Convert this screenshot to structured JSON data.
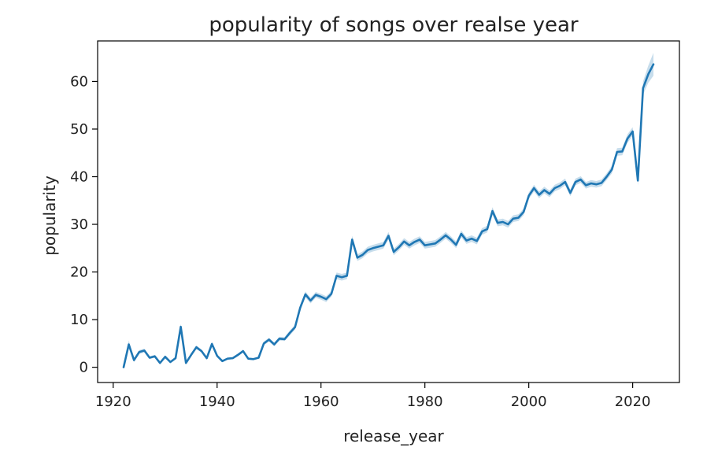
{
  "chart_data": {
    "type": "line",
    "title": "popularity of songs over realse year",
    "xlabel": "release_year",
    "ylabel": "popularity",
    "xlim": [
      1917,
      2029
    ],
    "ylim": [
      -3.2,
      68.5
    ],
    "xticks": [
      1920,
      1940,
      1960,
      1980,
      2000,
      2020
    ],
    "yticks": [
      0,
      10,
      20,
      30,
      40,
      50,
      60
    ],
    "grid": false,
    "legend": "none",
    "color": "#1f77b4",
    "series": [
      {
        "x": [
          1922,
          1923,
          1924,
          1925,
          1926,
          1927,
          1928,
          1929,
          1930,
          1931,
          1932,
          1933,
          1934,
          1935,
          1936,
          1937,
          1938,
          1939,
          1940,
          1941,
          1942,
          1943,
          1944,
          1945,
          1946,
          1947,
          1948,
          1949,
          1950,
          1951,
          1952,
          1953,
          1954,
          1955,
          1956,
          1957,
          1958,
          1959,
          1960,
          1961,
          1962,
          1963,
          1964,
          1965,
          1966,
          1967,
          1968,
          1969,
          1970,
          1971,
          1972,
          1973,
          1974,
          1975,
          1976,
          1977,
          1978,
          1979,
          1980,
          1981,
          1982,
          1983,
          1984,
          1985,
          1986,
          1987,
          1988,
          1989,
          1990,
          1991,
          1992,
          1993,
          1994,
          1995,
          1996,
          1997,
          1998,
          1999,
          2000,
          2001,
          2002,
          2003,
          2004,
          2005,
          2006,
          2007,
          2008,
          2009,
          2010,
          2011,
          2012,
          2013,
          2014,
          2015,
          2016,
          2017,
          2018,
          2019,
          2020,
          2021,
          2022,
          2023,
          2024
        ],
        "y": [
          0,
          4.8,
          1.5,
          3.2,
          3.5,
          2.0,
          2.3,
          0.9,
          2.2,
          1.1,
          1.9,
          8.5,
          0.9,
          2.6,
          4.2,
          3.4,
          1.9,
          4.9,
          2.4,
          1.3,
          1.8,
          1.9,
          2.6,
          3.4,
          1.8,
          1.7,
          2.0,
          5.0,
          5.8,
          4.8,
          6.0,
          5.9,
          7.2,
          8.4,
          12.5,
          15.3,
          14.0,
          15.2,
          14.8,
          14.3,
          15.4,
          19.2,
          18.9,
          19.2,
          26.8,
          23.0,
          23.6,
          24.6,
          25.0,
          25.3,
          25.6,
          27.6,
          24.2,
          25.2,
          26.4,
          25.6,
          26.3,
          26.8,
          25.6,
          25.8,
          26.0,
          26.8,
          27.7,
          26.8,
          25.7,
          28.0,
          26.6,
          27.0,
          26.5,
          28.5,
          29.0,
          32.8,
          30.3,
          30.5,
          30.0,
          31.2,
          31.4,
          32.6,
          36.0,
          37.6,
          36.2,
          37.2,
          36.4,
          37.6,
          38.1,
          38.9,
          36.6,
          38.9,
          39.4,
          38.2,
          38.6,
          38.4,
          38.7,
          40.0,
          41.5,
          45.2,
          45.3,
          48.0,
          49.5,
          39.2,
          58.6,
          61.5,
          63.6
        ],
        "band_width": [
          0.3,
          0.8,
          0.4,
          0.4,
          0.4,
          0.3,
          0.3,
          0.2,
          0.3,
          0.2,
          0.3,
          0.6,
          0.2,
          0.3,
          0.4,
          0.3,
          0.3,
          0.4,
          0.3,
          0.2,
          0.2,
          0.2,
          0.3,
          0.3,
          0.2,
          0.2,
          0.2,
          0.4,
          0.4,
          0.4,
          0.4,
          0.4,
          0.5,
          0.5,
          0.6,
          0.6,
          0.6,
          0.6,
          0.6,
          0.6,
          0.6,
          0.7,
          0.7,
          0.7,
          0.8,
          0.7,
          0.7,
          0.7,
          0.7,
          0.7,
          0.7,
          0.8,
          0.7,
          0.7,
          0.7,
          0.7,
          0.7,
          0.7,
          0.7,
          0.7,
          0.7,
          0.7,
          0.7,
          0.7,
          0.7,
          0.7,
          0.7,
          0.7,
          0.7,
          0.7,
          0.7,
          0.8,
          0.7,
          0.7,
          0.7,
          0.7,
          0.7,
          0.7,
          0.7,
          0.7,
          0.7,
          0.7,
          0.7,
          0.7,
          0.7,
          0.7,
          0.7,
          0.7,
          0.7,
          0.7,
          0.7,
          0.7,
          0.7,
          0.7,
          0.8,
          0.8,
          0.8,
          0.9,
          0.9,
          1.0,
          1.4,
          1.8,
          2.4
        ]
      }
    ]
  }
}
